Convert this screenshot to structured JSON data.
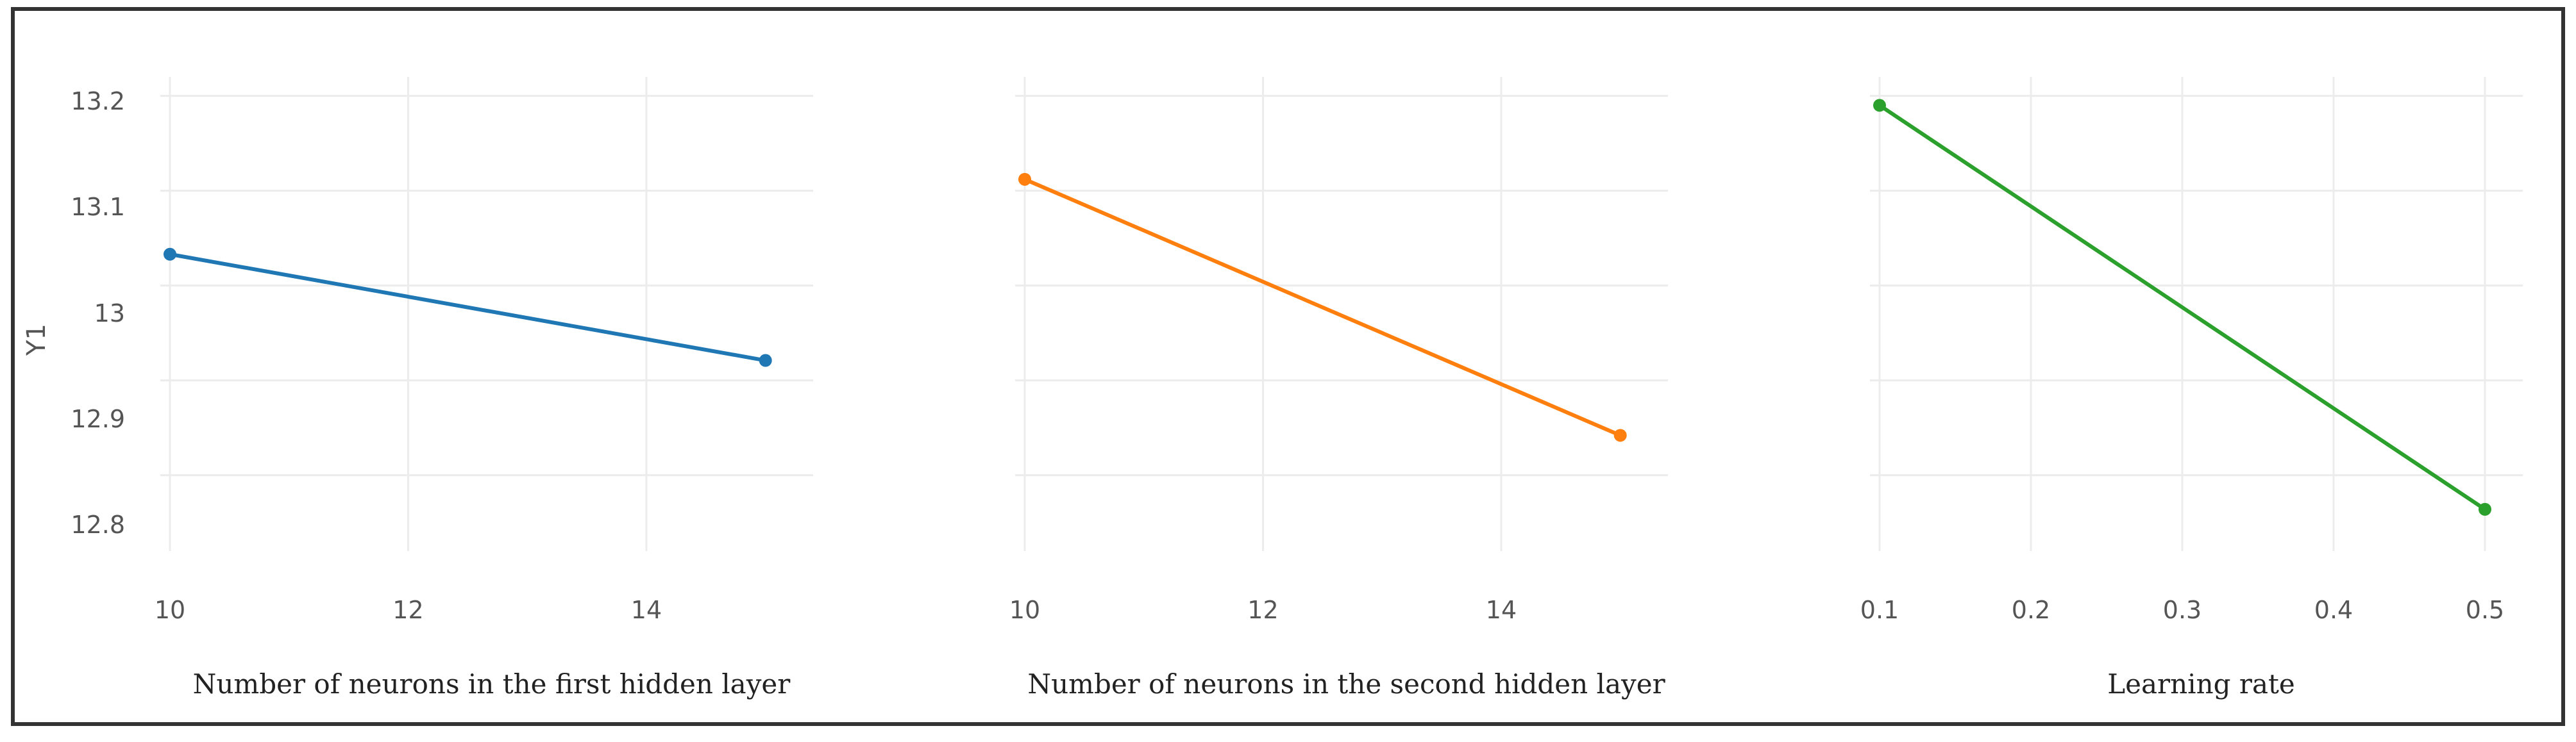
{
  "chart_data": {
    "type": "line",
    "ylabel": "Y1",
    "ylim": [
      12.72,
      13.22
    ],
    "yticks": [
      12.8,
      12.9,
      13,
      13.1,
      13.2
    ],
    "ytick_labels": [
      "12.8",
      "12.9",
      "13",
      "13.1",
      "13.2"
    ],
    "grid": true,
    "legend": "none",
    "panels": [
      {
        "xlabel": "Number of neurons in the first hidden layer",
        "xlim": [
          10,
          15.4
        ],
        "xticks": [
          10,
          12,
          14
        ],
        "xtick_labels": [
          "10",
          "12",
          "14"
        ],
        "color": "#1f77b4",
        "x": [
          10,
          15
        ],
        "y": [
          13.033,
          12.921
        ]
      },
      {
        "xlabel": "Number of neurons in the second hidden layer",
        "xlim": [
          10,
          15.4
        ],
        "xticks": [
          10,
          12,
          14
        ],
        "xtick_labels": [
          "10",
          "12",
          "14"
        ],
        "color": "#ff7f0e",
        "x": [
          10,
          15
        ],
        "y": [
          13.112,
          12.842
        ]
      },
      {
        "xlabel": "Learning rate",
        "xlim": [
          0.1,
          0.525
        ],
        "xticks": [
          0.1,
          0.2,
          0.3,
          0.4,
          0.5
        ],
        "xtick_labels": [
          "0.1",
          "0.2",
          "0.3",
          "0.4",
          "0.5"
        ],
        "color": "#2ca02c",
        "x": [
          0.1,
          0.5
        ],
        "y": [
          13.19,
          12.764
        ]
      }
    ]
  }
}
